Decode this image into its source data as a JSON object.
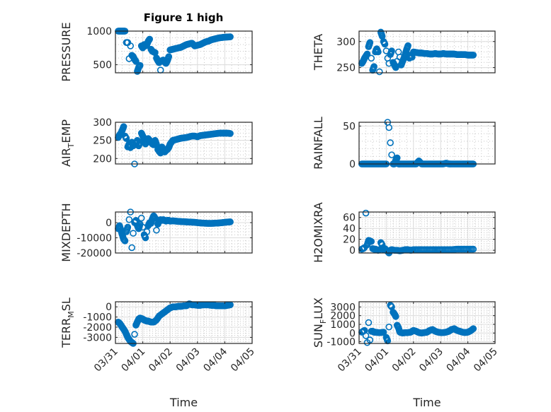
{
  "figure": {
    "title": "Figure 1 high",
    "marker_color": "#0072bd"
  },
  "chart_data": [
    {
      "type": "scatter",
      "panel": "top-left",
      "title": "Figure 1 high",
      "ylabel": "PRESSURE",
      "xlabel": "",
      "ylim": [
        380,
        1000
      ],
      "yticks": [
        500,
        1000
      ],
      "ytick_labels": [
        "500",
        "1000"
      ],
      "xlim_days": [
        0,
        5
      ],
      "xtick_labels": [
        "03/31",
        "04/01",
        "04/02",
        "04/03",
        "04/04",
        "04/05"
      ],
      "grid": "major+minor",
      "x": [
        0.1,
        0.15,
        0.2,
        0.25,
        0.3,
        0.35,
        0.4,
        0.45,
        0.5,
        0.55,
        0.6,
        0.65,
        0.7,
        0.75,
        0.8,
        0.85,
        0.9,
        0.95,
        1.0,
        1.05,
        1.1,
        1.15,
        1.2,
        1.25,
        1.3,
        1.35,
        1.4,
        1.45,
        1.5,
        1.55,
        1.6,
        1.65,
        1.7,
        1.75,
        1.8,
        1.85,
        1.9,
        1.95,
        2.0,
        2.1,
        2.2,
        2.3,
        2.4,
        2.5,
        2.6,
        2.7,
        2.8,
        2.9,
        3.0,
        3.1,
        3.2,
        3.3,
        3.4,
        3.5,
        3.6,
        3.7,
        3.8,
        3.9,
        4.0,
        4.1,
        4.2
      ],
      "y": [
        1000,
        1000,
        1000,
        1000,
        1000,
        1000,
        830,
        830,
        590,
        780,
        640,
        620,
        580,
        550,
        400,
        460,
        490,
        780,
        750,
        800,
        780,
        800,
        850,
        880,
        730,
        700,
        690,
        680,
        600,
        560,
        530,
        420,
        560,
        570,
        540,
        520,
        560,
        620,
        720,
        730,
        740,
        750,
        760,
        780,
        800,
        810,
        820,
        780,
        790,
        800,
        820,
        840,
        850,
        870,
        880,
        890,
        900,
        905,
        910,
        912,
        915
      ]
    },
    {
      "type": "scatter",
      "panel": "top-right",
      "ylabel": "THETA",
      "xlabel": "",
      "ylim": [
        240,
        320
      ],
      "yticks": [
        250,
        300
      ],
      "ytick_labels": [
        "250",
        "300"
      ],
      "xlim_days": [
        0,
        5
      ],
      "xtick_labels": [
        "03/31",
        "04/01",
        "04/02",
        "04/03",
        "04/04",
        "04/05"
      ],
      "grid": "major+minor",
      "x": [
        0.1,
        0.15,
        0.2,
        0.25,
        0.3,
        0.35,
        0.4,
        0.45,
        0.5,
        0.55,
        0.6,
        0.65,
        0.7,
        0.75,
        0.8,
        0.85,
        0.9,
        0.95,
        1.0,
        1.05,
        1.1,
        1.15,
        1.2,
        1.25,
        1.3,
        1.35,
        1.4,
        1.45,
        1.5,
        1.55,
        1.6,
        1.65,
        1.7,
        1.75,
        1.8,
        1.85,
        1.9,
        1.95,
        2.0,
        2.1,
        2.2,
        2.3,
        2.4,
        2.5,
        2.6,
        2.7,
        2.8,
        2.9,
        3.0,
        3.1,
        3.2,
        3.3,
        3.4,
        3.5,
        3.6,
        3.7,
        3.8,
        3.9,
        4.0,
        4.1,
        4.2
      ],
      "y": [
        258,
        262,
        268,
        272,
        276,
        290,
        298,
        268,
        245,
        252,
        280,
        286,
        280,
        242,
        318,
        310,
        300,
        295,
        282,
        268,
        258,
        275,
        282,
        260,
        255,
        250,
        262,
        280,
        270,
        255,
        262,
        268,
        276,
        285,
        292,
        268,
        274,
        270,
        280,
        279,
        278,
        278,
        277,
        277,
        276,
        276,
        277,
        276,
        276,
        277,
        276,
        276,
        276,
        276,
        275,
        275,
        275,
        275,
        274,
        274,
        274
      ]
    },
    {
      "type": "scatter",
      "panel": "row2-left",
      "ylabel": "AIR_TEMP",
      "ylabel_display": "AIR",
      "ylabel_subscript": "T",
      "ylabel_suffix": "EMP",
      "xlabel": "",
      "ylim": [
        185,
        300
      ],
      "yticks": [
        200,
        250,
        300
      ],
      "ytick_labels": [
        "200",
        "250",
        "300"
      ],
      "xlim_days": [
        0,
        5
      ],
      "xtick_labels": [
        "03/31",
        "04/01",
        "04/02",
        "04/03",
        "04/04",
        "04/05"
      ],
      "grid": "major+minor",
      "x": [
        0.1,
        0.15,
        0.2,
        0.25,
        0.3,
        0.35,
        0.4,
        0.45,
        0.5,
        0.55,
        0.6,
        0.65,
        0.7,
        0.75,
        0.8,
        0.85,
        0.9,
        0.95,
        1.0,
        1.05,
        1.1,
        1.15,
        1.2,
        1.25,
        1.3,
        1.35,
        1.4,
        1.45,
        1.5,
        1.55,
        1.6,
        1.65,
        1.7,
        1.75,
        1.8,
        1.85,
        1.9,
        1.95,
        2.0,
        2.1,
        2.2,
        2.3,
        2.4,
        2.5,
        2.6,
        2.7,
        2.8,
        2.9,
        3.0,
        3.1,
        3.2,
        3.3,
        3.4,
        3.5,
        3.6,
        3.7,
        3.8,
        3.9,
        4.0,
        4.1,
        4.2
      ],
      "y": [
        258,
        265,
        270,
        278,
        288,
        262,
        255,
        232,
        240,
        230,
        245,
        235,
        185,
        240,
        250,
        235,
        245,
        270,
        262,
        255,
        240,
        250,
        255,
        250,
        245,
        240,
        238,
        250,
        240,
        225,
        220,
        215,
        232,
        225,
        218,
        222,
        225,
        230,
        240,
        250,
        252,
        254,
        256,
        257,
        258,
        260,
        262,
        262,
        260,
        263,
        264,
        265,
        266,
        267,
        268,
        269,
        270,
        270,
        270,
        270,
        269
      ]
    },
    {
      "type": "scatter",
      "panel": "row2-right",
      "ylabel": "RAINFALL",
      "xlabel": "",
      "ylim": [
        0,
        55
      ],
      "yticks": [
        0,
        50
      ],
      "ytick_labels": [
        "0",
        "50"
      ],
      "xlim_days": [
        0,
        5
      ],
      "xtick_labels": [
        "03/31",
        "04/01",
        "04/02",
        "04/03",
        "04/04",
        "04/05"
      ],
      "grid": "major+minor",
      "x": [
        0.1,
        0.2,
        0.3,
        0.4,
        0.5,
        0.6,
        0.7,
        0.8,
        0.9,
        1.0,
        1.05,
        1.1,
        1.15,
        1.2,
        1.25,
        1.3,
        1.35,
        1.4,
        1.45,
        1.5,
        1.6,
        1.7,
        1.8,
        1.9,
        2.0,
        2.1,
        2.2,
        2.3,
        2.4,
        2.5,
        2.6,
        2.7,
        2.8,
        2.9,
        3.0,
        3.1,
        3.2,
        3.3,
        3.4,
        3.5,
        3.6,
        3.7,
        3.8,
        3.9,
        4.0,
        4.1,
        4.2
      ],
      "y": [
        0,
        0,
        0,
        0,
        0,
        0,
        0,
        0,
        0,
        0,
        55,
        48,
        28,
        12,
        0,
        0,
        5,
        8,
        0,
        0,
        0,
        0,
        0,
        0,
        0,
        0,
        4,
        0,
        0,
        0,
        0,
        0,
        0,
        0,
        0,
        0,
        1,
        0,
        0,
        0,
        0,
        0,
        0,
        0,
        0,
        0,
        0
      ]
    },
    {
      "type": "scatter",
      "panel": "row3-left",
      "ylabel": "MIXDEPTH",
      "xlabel": "",
      "ylim": [
        -20000,
        7000
      ],
      "yticks": [
        -20000,
        -10000,
        0
      ],
      "ytick_labels": [
        "-20000",
        "-10000",
        "0"
      ],
      "xlim_days": [
        0,
        5
      ],
      "xtick_labels": [
        "03/31",
        "04/01",
        "04/02",
        "04/03",
        "04/04",
        "04/05"
      ],
      "grid": "major+minor",
      "x": [
        0.1,
        0.15,
        0.2,
        0.25,
        0.3,
        0.35,
        0.4,
        0.45,
        0.5,
        0.55,
        0.6,
        0.65,
        0.7,
        0.75,
        0.8,
        0.85,
        0.9,
        0.95,
        1.0,
        1.05,
        1.1,
        1.15,
        1.2,
        1.25,
        1.3,
        1.35,
        1.4,
        1.45,
        1.5,
        1.55,
        1.6,
        1.65,
        1.7,
        1.75,
        1.8,
        1.85,
        1.9,
        1.95,
        2.0,
        2.1,
        2.2,
        2.3,
        2.4,
        2.5,
        2.6,
        2.7,
        2.8,
        2.9,
        3.0,
        3.1,
        3.2,
        3.3,
        3.4,
        3.5,
        3.6,
        3.7,
        3.8,
        3.9,
        4.0,
        4.1,
        4.2
      ],
      "y": [
        -4000,
        -2000,
        -5000,
        -8000,
        -11000,
        -12000,
        -6000,
        -3000,
        2000,
        7000,
        -16500,
        -7000,
        0,
        1500,
        -2000,
        -4000,
        -1000,
        3000,
        -3000,
        -8000,
        -10000,
        -6000,
        -2000,
        0,
        -500,
        2500,
        4500,
        3000,
        -5000,
        -1000,
        1000,
        2000,
        1500,
        2000,
        1500,
        1000,
        1500,
        1500,
        1000,
        1200,
        1000,
        800,
        700,
        600,
        500,
        400,
        300,
        200,
        0,
        -200,
        -300,
        -400,
        -500,
        -500,
        -400,
        -300,
        -200,
        0,
        200,
        400,
        500
      ]
    },
    {
      "type": "scatter",
      "panel": "row3-right",
      "ylabel": "H2OMIXRA",
      "xlabel": "",
      "ylim": [
        -5,
        70
      ],
      "yticks": [
        0,
        20,
        40,
        60
      ],
      "ytick_labels": [
        "0",
        "20",
        "40",
        "60"
      ],
      "xlim_days": [
        0,
        5
      ],
      "xtick_labels": [
        "03/31",
        "04/01",
        "04/02",
        "04/03",
        "04/04",
        "04/05"
      ],
      "grid": "major+minor",
      "x": [
        0.1,
        0.15,
        0.2,
        0.25,
        0.3,
        0.35,
        0.4,
        0.45,
        0.5,
        0.55,
        0.6,
        0.65,
        0.7,
        0.75,
        0.8,
        0.85,
        0.9,
        0.95,
        1.0,
        1.05,
        1.1,
        1.15,
        1.2,
        1.3,
        1.4,
        1.5,
        1.6,
        1.7,
        1.8,
        1.9,
        2.0,
        2.2,
        2.4,
        2.6,
        2.8,
        3.0,
        3.2,
        3.4,
        3.6,
        3.8,
        4.0,
        4.2
      ],
      "y": [
        2,
        3,
        5,
        68,
        10,
        18,
        17,
        16,
        3,
        2,
        2,
        1,
        0,
        1,
        14,
        10,
        1,
        3,
        0,
        -2,
        -5,
        0,
        1,
        0,
        0,
        -1,
        0,
        1,
        1,
        0,
        1,
        1,
        1,
        1,
        1,
        1,
        1,
        1,
        2,
        2,
        2,
        2
      ]
    },
    {
      "type": "scatter",
      "panel": "bottom-left",
      "ylabel": "TERR_MSL",
      "ylabel_display": "TERR",
      "ylabel_subscript": "M",
      "ylabel_suffix": "SL",
      "xlabel": "Time",
      "ylim": [
        -3600,
        500
      ],
      "yticks": [
        -3000,
        -2000,
        -1000,
        0
      ],
      "ytick_labels": [
        "-3000",
        "-2000",
        "-1000",
        "0"
      ],
      "xlim_days": [
        0,
        5
      ],
      "xtick_labels": [
        "03/31",
        "04/01",
        "04/02",
        "04/03",
        "04/04",
        "04/05"
      ],
      "grid": "major+minor",
      "x": [
        0.1,
        0.15,
        0.2,
        0.25,
        0.3,
        0.35,
        0.4,
        0.45,
        0.5,
        0.55,
        0.6,
        0.65,
        0.7,
        0.75,
        0.8,
        0.85,
        0.9,
        0.95,
        1.0,
        1.05,
        1.1,
        1.15,
        1.2,
        1.3,
        1.4,
        1.5,
        1.6,
        1.7,
        1.8,
        1.9,
        2.0,
        2.1,
        2.2,
        2.3,
        2.4,
        2.5,
        2.6,
        2.7,
        2.8,
        2.9,
        3.0,
        3.1,
        3.2,
        3.3,
        3.4,
        3.5,
        3.6,
        3.7,
        3.8,
        3.9,
        4.0,
        4.1,
        4.2
      ],
      "y": [
        -1500,
        -1600,
        -1800,
        -2000,
        -2200,
        -2400,
        -2700,
        -3000,
        -3200,
        -3400,
        -3500,
        -3600,
        -2700,
        -1800,
        -1500,
        -1200,
        -1100,
        -1150,
        -1200,
        -1300,
        -1350,
        -1400,
        -1400,
        -1500,
        -1500,
        -1300,
        -900,
        -700,
        -500,
        -300,
        -100,
        0,
        0,
        50,
        50,
        100,
        100,
        300,
        200,
        200,
        150,
        150,
        200,
        200,
        200,
        150,
        150,
        100,
        100,
        100,
        100,
        150,
        200
      ]
    },
    {
      "type": "scatter",
      "panel": "bottom-right",
      "ylabel": "SUN_FLUX",
      "ylabel_display": "SUN",
      "ylabel_subscript": "F",
      "ylabel_suffix": "LUX",
      "xlabel": "Time",
      "ylim": [
        -1200,
        3600
      ],
      "yticks": [
        -1000,
        0,
        1000,
        2000,
        3000
      ],
      "ytick_labels": [
        "-1000",
        "0",
        "1000",
        "2000",
        "3000"
      ],
      "xlim_days": [
        0,
        5
      ],
      "xtick_labels": [
        "03/31",
        "04/01",
        "04/02",
        "04/03",
        "04/04",
        "04/05"
      ],
      "grid": "major+minor",
      "x": [
        0.1,
        0.15,
        0.2,
        0.25,
        0.3,
        0.35,
        0.4,
        0.45,
        0.5,
        0.55,
        0.6,
        0.7,
        0.8,
        0.9,
        1.0,
        1.05,
        1.1,
        1.15,
        1.2,
        1.25,
        1.3,
        1.35,
        1.4,
        1.45,
        1.5,
        1.6,
        1.7,
        1.8,
        1.9,
        2.0,
        2.1,
        2.2,
        2.3,
        2.4,
        2.5,
        2.6,
        2.7,
        2.8,
        2.9,
        3.0,
        3.1,
        3.2,
        3.3,
        3.4,
        3.5,
        3.6,
        3.7,
        3.8,
        3.9,
        4.0,
        4.1,
        4.2
      ],
      "y": [
        100,
        200,
        300,
        -300,
        -1100,
        1200,
        -800,
        200,
        200,
        100,
        100,
        50,
        50,
        100,
        -500,
        -900,
        700,
        3200,
        3000,
        2400,
        2200,
        1900,
        900,
        600,
        100,
        0,
        50,
        50,
        100,
        300,
        200,
        50,
        0,
        50,
        100,
        300,
        400,
        200,
        100,
        50,
        50,
        100,
        200,
        400,
        500,
        300,
        200,
        100,
        50,
        100,
        250,
        500
      ]
    }
  ]
}
